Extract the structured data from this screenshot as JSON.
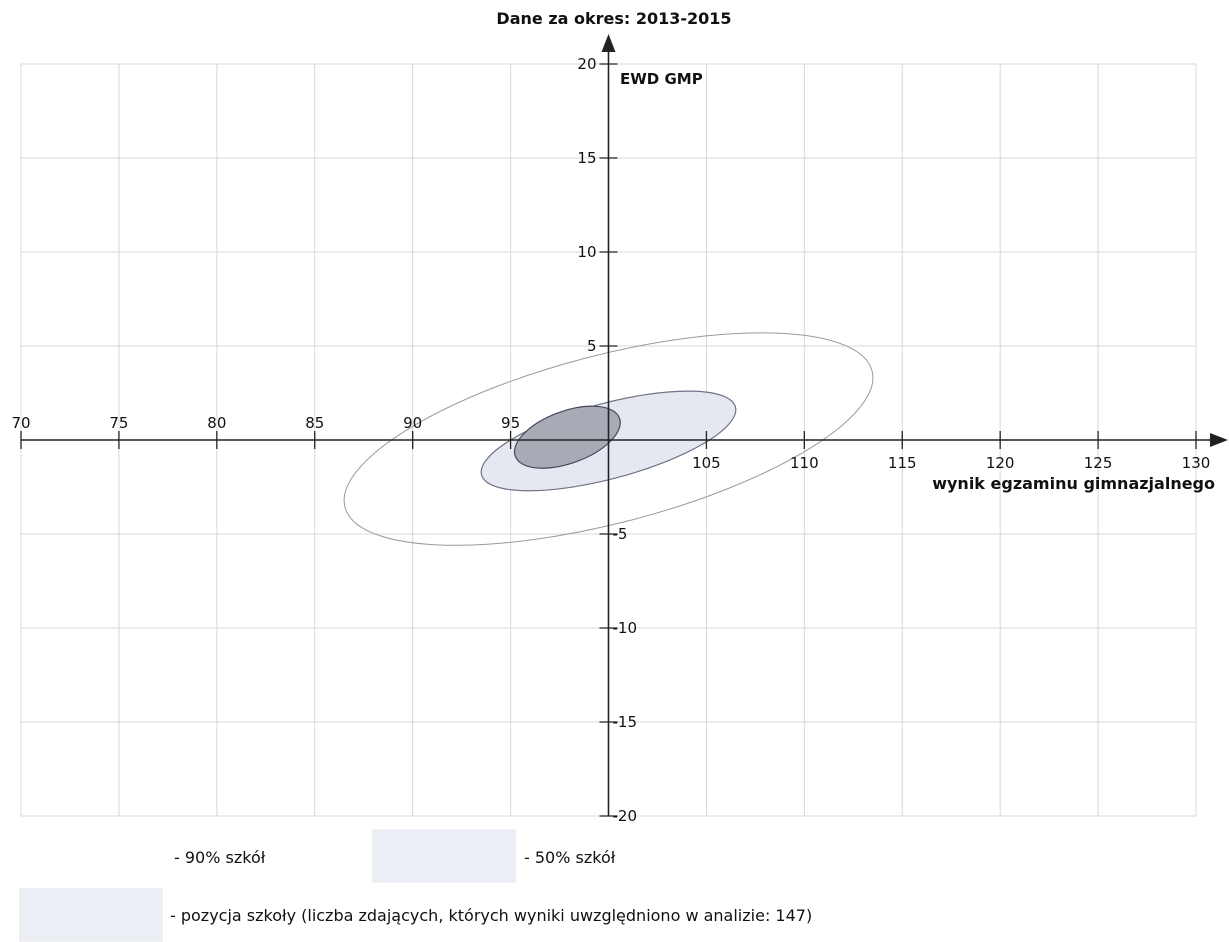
{
  "chart_data": {
    "type": "scatter",
    "title": "Dane za okres: 2013-2015",
    "xlabel": "wynik egzaminu gimnazjalnego",
    "ylabel": "EWD GMP",
    "xlim": [
      70,
      130
    ],
    "ylim": [
      -20,
      20
    ],
    "x_ticks": [
      "70",
      "75",
      "80",
      "85",
      "90",
      "95",
      "105",
      "110",
      "115",
      "120",
      "125",
      "130"
    ],
    "y_ticks": [
      "20",
      "15",
      "10",
      "5",
      "-5",
      "-10",
      "-15",
      "-20"
    ],
    "grid": true,
    "series": [
      {
        "name": "90% szkół",
        "shape": "ellipse",
        "color": "#9a9a9a",
        "fill": "none",
        "extent_x": [
          86.5,
          113.5
        ],
        "extent_y": [
          -5.6,
          5.7
        ],
        "angle_deg": -14.5
      },
      {
        "name": "50% szkół",
        "shape": "ellipse",
        "color": "#6f7386",
        "fill": "#e6e8f1",
        "extent_x": [
          93.5,
          106.5
        ],
        "extent_y": [
          -2.7,
          2.6
        ],
        "angle_deg": -15
      },
      {
        "name": "pozycja szkoły",
        "shape": "ellipse",
        "color": "#454858",
        "fill": "#a8aab6",
        "extent_x": [
          95.2,
          100.6
        ],
        "extent_y": [
          -1.5,
          1.8
        ],
        "angle_deg": -20
      }
    ]
  },
  "legend": {
    "item_90": "- 90% szkół",
    "item_50": "- 50% szkół",
    "item_school": "- pozycja szkoły (liczba zdających, których wyniki uwzględniono w analizie: 147)"
  },
  "colors": {
    "grid": "#d6d8de",
    "axis": "#222222",
    "swatch": "#eceef5"
  }
}
